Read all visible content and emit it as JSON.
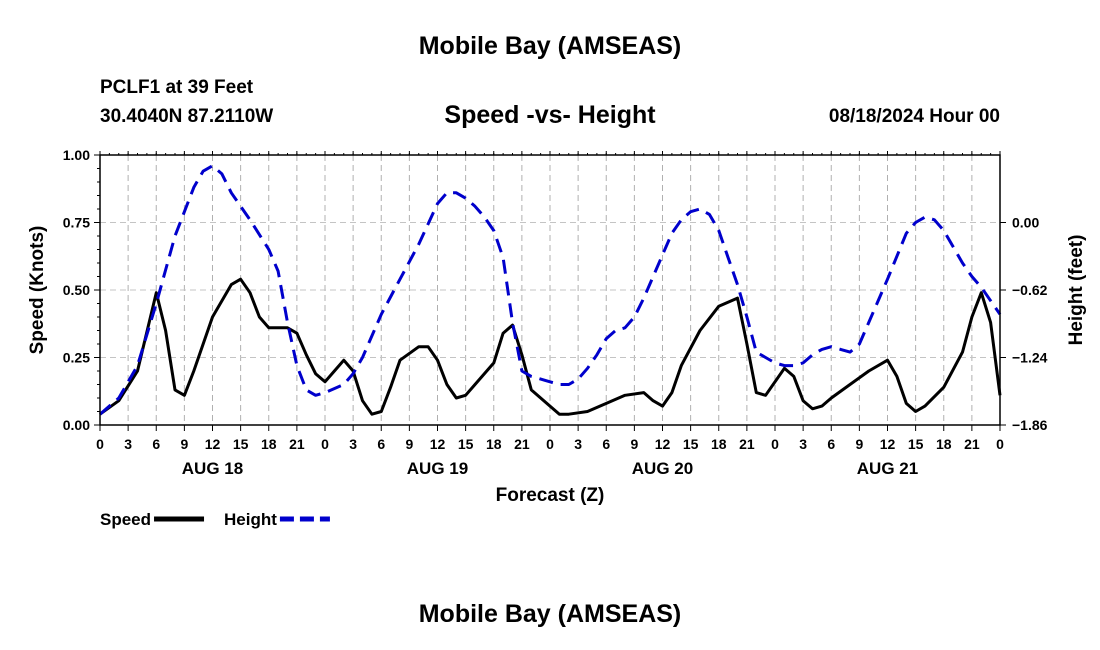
{
  "chart_data": {
    "type": "line",
    "title": "Mobile Bay (AMSEAS)",
    "subtitle": "Speed -vs- Height",
    "station": "PCLF1 at 39 Feet",
    "coordinates": "30.4040N  87.2110W",
    "datetime": "08/18/2024 Hour 00",
    "footer_title": "Mobile Bay (AMSEAS)",
    "xlabel": "Forecast (Z)",
    "ylabel_left": "Speed (Knots)",
    "ylabel_right": "Height (feet)",
    "x_tick_labels": [
      "0",
      "3",
      "6",
      "9",
      "12",
      "15",
      "18",
      "21",
      "0",
      "3",
      "6",
      "9",
      "12",
      "15",
      "18",
      "21",
      "0",
      "3",
      "6",
      "9",
      "12",
      "15",
      "18",
      "21",
      "0",
      "3",
      "6",
      "9",
      "12",
      "15",
      "18",
      "21",
      "0"
    ],
    "day_labels": [
      {
        "label": "AUG 18",
        "hour": 12
      },
      {
        "label": "AUG 19",
        "hour": 36
      },
      {
        "label": "AUG 20",
        "hour": 60
      },
      {
        "label": "AUG 21",
        "hour": 84
      }
    ],
    "xlim": [
      0,
      96
    ],
    "ylim_left": [
      0,
      1.0
    ],
    "left_ticks": [
      "0.00",
      "0.25",
      "0.50",
      "0.75",
      "1.00"
    ],
    "ylim_right": [
      -1.86,
      0.62
    ],
    "right_ticks": [
      "0.00",
      "-0.62",
      "-1.24",
      "-1.86"
    ],
    "grid": true,
    "legend_position": "bottom-left",
    "series": [
      {
        "name": "Speed",
        "color": "#000000",
        "dash": "solid",
        "axis": "left",
        "points": [
          [
            0,
            0.04
          ],
          [
            2,
            0.09
          ],
          [
            4,
            0.2
          ],
          [
            6,
            0.49
          ],
          [
            7,
            0.35
          ],
          [
            8,
            0.13
          ],
          [
            9,
            0.11
          ],
          [
            10,
            0.2
          ],
          [
            12,
            0.4
          ],
          [
            14,
            0.52
          ],
          [
            15,
            0.54
          ],
          [
            16,
            0.49
          ],
          [
            17,
            0.4
          ],
          [
            18,
            0.36
          ],
          [
            20,
            0.36
          ],
          [
            21,
            0.34
          ],
          [
            22,
            0.26
          ],
          [
            23,
            0.19
          ],
          [
            24,
            0.16
          ],
          [
            25,
            0.2
          ],
          [
            26,
            0.24
          ],
          [
            27,
            0.2
          ],
          [
            28,
            0.09
          ],
          [
            29,
            0.04
          ],
          [
            30,
            0.05
          ],
          [
            31,
            0.14
          ],
          [
            32,
            0.24
          ],
          [
            34,
            0.29
          ],
          [
            35,
            0.29
          ],
          [
            36,
            0.24
          ],
          [
            37,
            0.15
          ],
          [
            38,
            0.1
          ],
          [
            39,
            0.11
          ],
          [
            40,
            0.15
          ],
          [
            42,
            0.23
          ],
          [
            43,
            0.34
          ],
          [
            44,
            0.37
          ],
          [
            45,
            0.26
          ],
          [
            46,
            0.13
          ],
          [
            48,
            0.07
          ],
          [
            49,
            0.04
          ],
          [
            50,
            0.04
          ],
          [
            52,
            0.05
          ],
          [
            54,
            0.08
          ],
          [
            56,
            0.11
          ],
          [
            58,
            0.12
          ],
          [
            59,
            0.09
          ],
          [
            60,
            0.07
          ],
          [
            61,
            0.12
          ],
          [
            62,
            0.22
          ],
          [
            64,
            0.35
          ],
          [
            66,
            0.44
          ],
          [
            68,
            0.47
          ],
          [
            69,
            0.3
          ],
          [
            70,
            0.12
          ],
          [
            71,
            0.11
          ],
          [
            72,
            0.16
          ],
          [
            73,
            0.21
          ],
          [
            74,
            0.18
          ],
          [
            75,
            0.09
          ],
          [
            76,
            0.06
          ],
          [
            77,
            0.07
          ],
          [
            78,
            0.1
          ],
          [
            80,
            0.15
          ],
          [
            82,
            0.2
          ],
          [
            84,
            0.24
          ],
          [
            85,
            0.18
          ],
          [
            86,
            0.08
          ],
          [
            87,
            0.05
          ],
          [
            88,
            0.07
          ],
          [
            90,
            0.14
          ],
          [
            92,
            0.27
          ],
          [
            93,
            0.4
          ],
          [
            94,
            0.49
          ],
          [
            95,
            0.38
          ],
          [
            96,
            0.11
          ]
        ]
      },
      {
        "name": "Height",
        "color": "#0000cc",
        "dash": "dashed",
        "axis": "left",
        "points": [
          [
            0,
            0.04
          ],
          [
            2,
            0.1
          ],
          [
            4,
            0.22
          ],
          [
            6,
            0.45
          ],
          [
            8,
            0.7
          ],
          [
            10,
            0.88
          ],
          [
            11,
            0.94
          ],
          [
            12,
            0.96
          ],
          [
            13,
            0.93
          ],
          [
            14,
            0.86
          ],
          [
            16,
            0.76
          ],
          [
            18,
            0.65
          ],
          [
            19,
            0.57
          ],
          [
            20,
            0.38
          ],
          [
            21,
            0.22
          ],
          [
            22,
            0.13
          ],
          [
            23,
            0.11
          ],
          [
            24,
            0.12
          ],
          [
            26,
            0.15
          ],
          [
            27,
            0.19
          ],
          [
            28,
            0.25
          ],
          [
            29,
            0.33
          ],
          [
            30,
            0.41
          ],
          [
            32,
            0.54
          ],
          [
            34,
            0.67
          ],
          [
            36,
            0.82
          ],
          [
            37,
            0.86
          ],
          [
            38,
            0.86
          ],
          [
            39,
            0.84
          ],
          [
            40,
            0.81
          ],
          [
            41,
            0.77
          ],
          [
            42,
            0.72
          ],
          [
            43,
            0.62
          ],
          [
            44,
            0.38
          ],
          [
            45,
            0.2
          ],
          [
            46,
            0.18
          ],
          [
            48,
            0.16
          ],
          [
            49,
            0.15
          ],
          [
            50,
            0.15
          ],
          [
            51,
            0.17
          ],
          [
            52,
            0.21
          ],
          [
            53,
            0.26
          ],
          [
            54,
            0.32
          ],
          [
            55,
            0.35
          ],
          [
            56,
            0.36
          ],
          [
            57,
            0.4
          ],
          [
            58,
            0.47
          ],
          [
            60,
            0.63
          ],
          [
            61,
            0.71
          ],
          [
            62,
            0.76
          ],
          [
            63,
            0.79
          ],
          [
            64,
            0.8
          ],
          [
            65,
            0.78
          ],
          [
            66,
            0.72
          ],
          [
            67,
            0.62
          ],
          [
            68,
            0.52
          ],
          [
            69,
            0.4
          ],
          [
            70,
            0.27
          ],
          [
            71,
            0.25
          ],
          [
            72,
            0.23
          ],
          [
            73,
            0.22
          ],
          [
            74,
            0.22
          ],
          [
            75,
            0.23
          ],
          [
            76,
            0.26
          ],
          [
            77,
            0.28
          ],
          [
            78,
            0.29
          ],
          [
            79,
            0.28
          ],
          [
            80,
            0.27
          ],
          [
            81,
            0.3
          ],
          [
            82,
            0.38
          ],
          [
            84,
            0.54
          ],
          [
            86,
            0.71
          ],
          [
            87,
            0.75
          ],
          [
            88,
            0.77
          ],
          [
            89,
            0.76
          ],
          [
            90,
            0.72
          ],
          [
            92,
            0.6
          ],
          [
            93,
            0.55
          ],
          [
            94,
            0.51
          ],
          [
            96,
            0.41
          ]
        ]
      }
    ]
  }
}
